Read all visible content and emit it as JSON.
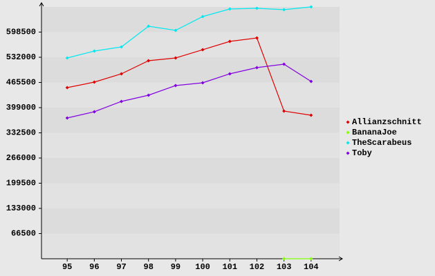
{
  "chart_data": {
    "type": "line",
    "x": [
      95,
      96,
      97,
      98,
      99,
      100,
      101,
      102,
      103,
      104
    ],
    "xlim": [
      94,
      105
    ],
    "xticks": [
      95,
      96,
      97,
      98,
      99,
      100,
      101,
      102,
      103,
      104
    ],
    "ylim": [
      0,
      665000
    ],
    "yticks": [
      66500,
      133000,
      199500,
      266000,
      332500,
      399000,
      465500,
      532000,
      598500
    ],
    "legend": "right",
    "series": [
      {
        "name": "Allianzschnitt",
        "color": "#e00000",
        "values": [
          451800,
          466400,
          488300,
          522900,
          530200,
          552000,
          573900,
          583000,
          389900,
          379000
        ]
      },
      {
        "name": "BananaJoe",
        "color": "#80ff00",
        "values": [
          null,
          null,
          null,
          null,
          null,
          null,
          null,
          null,
          0,
          0
        ]
      },
      {
        "name": "TheScarabeus",
        "color": "#00e8f0",
        "values": [
          530200,
          548400,
          559300,
          614000,
          603000,
          639500,
          659500,
          661400,
          657700,
          665000
        ]
      },
      {
        "name": "Toby",
        "color": "#8000e0",
        "values": [
          371700,
          388100,
          415400,
          431800,
          457300,
          464600,
          488300,
          504700,
          513800,
          468200
        ]
      }
    ]
  }
}
